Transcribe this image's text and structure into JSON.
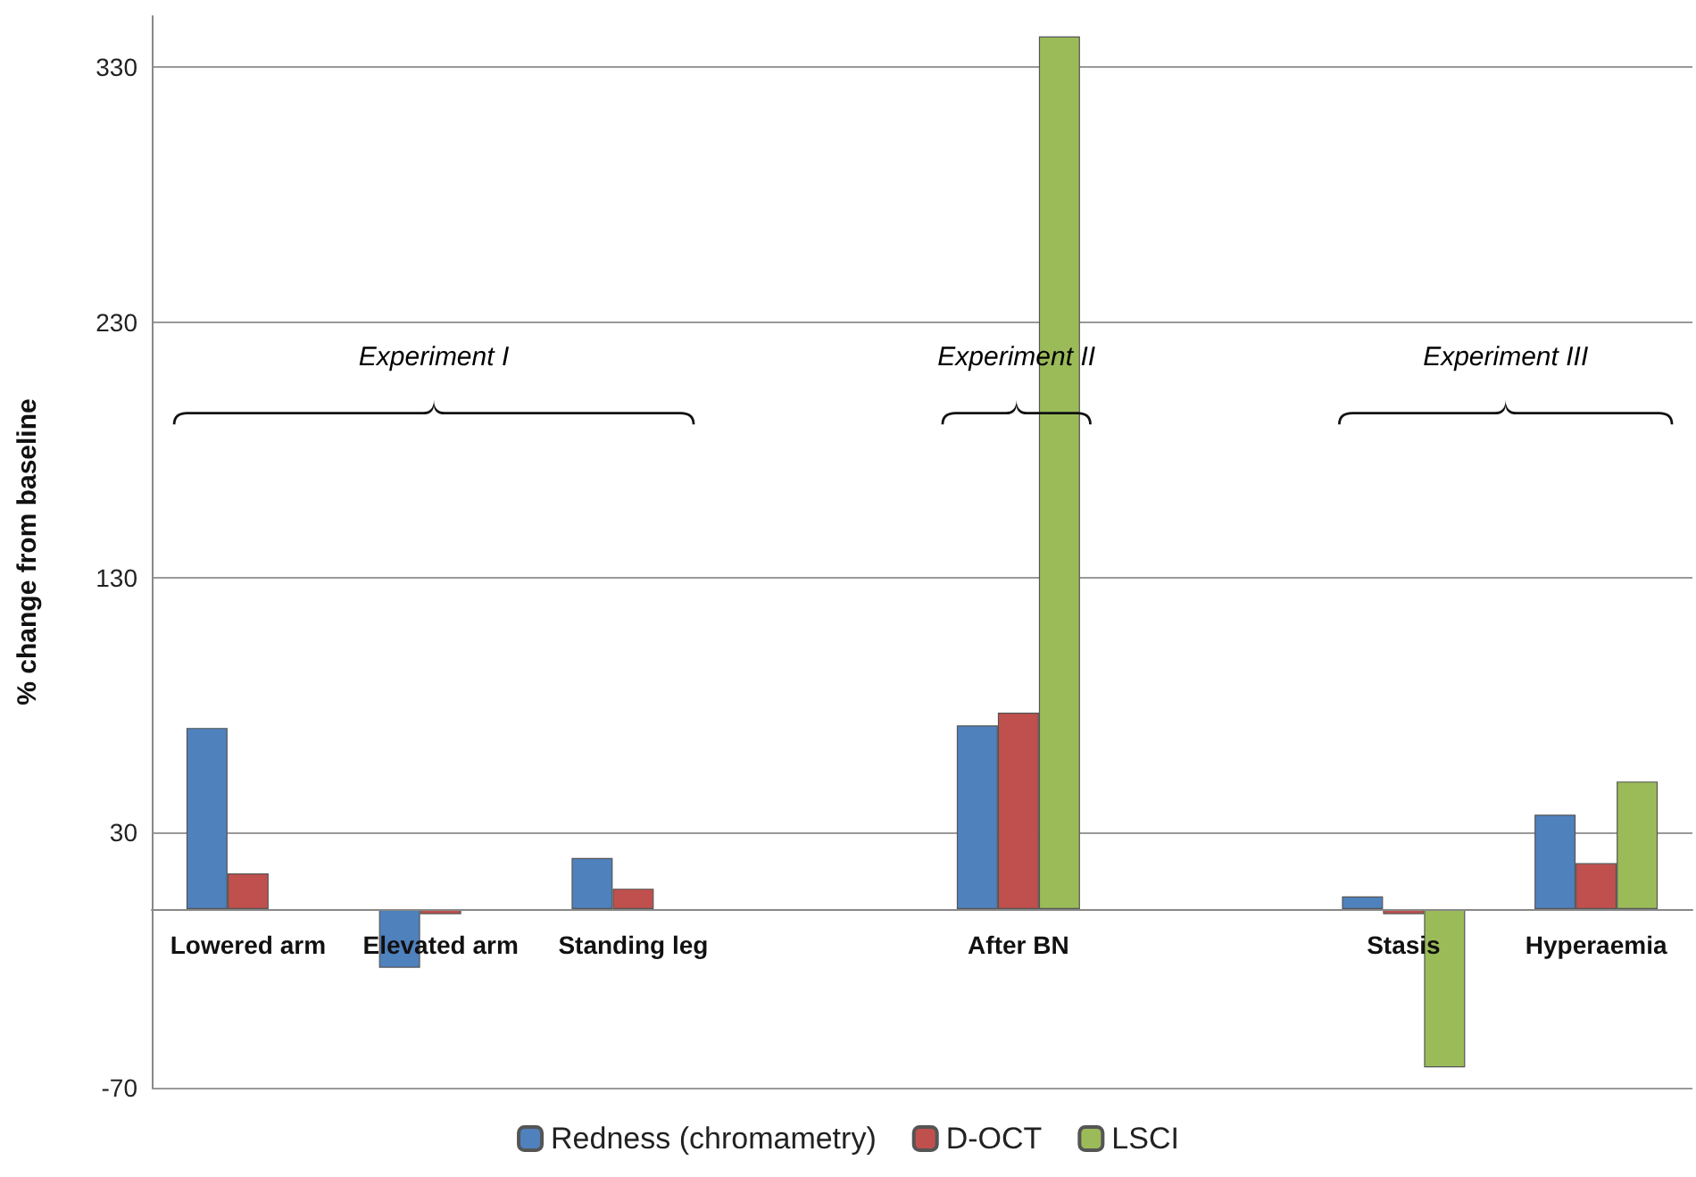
{
  "chart_data": {
    "type": "bar",
    "ylabel": "% change from baseline",
    "categories": [
      "Lowered arm",
      "Elevated arm",
      "Standing leg",
      null,
      "After BN",
      null,
      "Stasis",
      "Hyperaemia"
    ],
    "series": [
      {
        "name": "Redness (chromametry)",
        "color": "#4f81bd",
        "values": [
          71,
          -23,
          20,
          null,
          72,
          null,
          5,
          37
        ]
      },
      {
        "name": "D-OCT",
        "color": "#c0504d",
        "values": [
          14,
          -2,
          8,
          null,
          77,
          null,
          -2,
          18
        ]
      },
      {
        "name": "LSCI",
        "color": "#9bbb59",
        "values": [
          null,
          null,
          null,
          null,
          342,
          null,
          -62,
          50
        ]
      }
    ],
    "ylim": [
      -70,
      350
    ],
    "yticks": [
      -70,
      30,
      130,
      230,
      330
    ],
    "grid": "y",
    "legend": "bottom",
    "annotations": [
      "Experiment I",
      "Experiment II",
      "Experiment III"
    ]
  }
}
